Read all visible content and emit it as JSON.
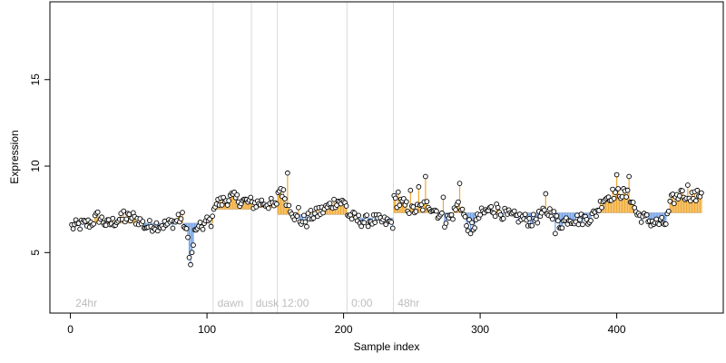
{
  "chart_data": {
    "type": "scatter",
    "xlabel": "Sample index",
    "ylabel": "Expression",
    "xlim": [
      -15,
      478
    ],
    "ylim": [
      1.5,
      19.5
    ],
    "x_ticks": [
      0,
      100,
      200,
      300,
      400
    ],
    "y_ticks": [
      5,
      10,
      15
    ],
    "grid": false,
    "legend": "none",
    "colors": {
      "above_segment": "#f0a830",
      "below_segment": "#6f9fe6",
      "point_fill": "#ffffff",
      "point_stroke": "#000000",
      "section_line": "#d9d9d9",
      "section_text": "#bdbdbd"
    },
    "sections": [
      {
        "label": "24hr",
        "start": 1,
        "end": 104,
        "baseline": 6.7
      },
      {
        "label": "dawn",
        "start": 105,
        "end": 132,
        "baseline": 7.5
      },
      {
        "label": "dusk",
        "start": 133,
        "end": 151,
        "baseline": 7.6
      },
      {
        "label": "12:00",
        "start": 152,
        "end": 202,
        "baseline": 7.2
      },
      {
        "label": "0:00",
        "start": 203,
        "end": 236,
        "baseline": 7.0
      },
      {
        "label": "48hr",
        "start": 237,
        "end": 462,
        "baseline": 7.3
      }
    ],
    "section_boundaries": [
      104.5,
      132.5,
      151.5,
      202.5,
      236.5
    ],
    "value_anchors": [
      [
        1,
        6.5
      ],
      [
        8,
        6.6
      ],
      [
        15,
        6.7
      ],
      [
        20,
        7.1
      ],
      [
        27,
        6.6
      ],
      [
        35,
        6.9
      ],
      [
        42,
        7.0
      ],
      [
        50,
        6.9
      ],
      [
        55,
        6.5
      ],
      [
        62,
        6.6
      ],
      [
        70,
        6.6
      ],
      [
        77,
        6.8
      ],
      [
        82,
        7.0
      ],
      [
        86,
        5.8
      ],
      [
        88,
        4.3
      ],
      [
        91,
        6.1
      ],
      [
        95,
        6.4
      ],
      [
        100,
        6.8
      ],
      [
        104,
        6.8
      ],
      [
        105,
        7.8
      ],
      [
        110,
        7.9
      ],
      [
        118,
        8.2
      ],
      [
        125,
        8.0
      ],
      [
        132,
        7.9
      ],
      [
        133,
        7.8
      ],
      [
        140,
        7.9
      ],
      [
        147,
        7.8
      ],
      [
        151,
        7.6
      ],
      [
        152,
        8.6
      ],
      [
        155,
        8.5
      ],
      [
        160,
        7.8
      ],
      [
        165,
        7.0
      ],
      [
        170,
        6.8
      ],
      [
        176,
        7.1
      ],
      [
        182,
        7.3
      ],
      [
        188,
        7.6
      ],
      [
        195,
        8.0
      ],
      [
        202,
        7.8
      ],
      [
        203,
        7.2
      ],
      [
        210,
        6.9
      ],
      [
        215,
        6.8
      ],
      [
        222,
        6.9
      ],
      [
        228,
        6.8
      ],
      [
        236,
        6.7
      ],
      [
        237,
        8.0
      ],
      [
        244,
        7.8
      ],
      [
        250,
        7.4
      ],
      [
        256,
        7.6
      ],
      [
        262,
        7.8
      ],
      [
        268,
        7.4
      ],
      [
        274,
        6.8
      ],
      [
        280,
        7.2
      ],
      [
        285,
        8.0
      ],
      [
        290,
        6.6
      ],
      [
        295,
        6.5
      ],
      [
        300,
        7.2
      ],
      [
        308,
        7.5
      ],
      [
        315,
        7.3
      ],
      [
        322,
        7.1
      ],
      [
        330,
        7.0
      ],
      [
        338,
        6.8
      ],
      [
        345,
        7.2
      ],
      [
        352,
        7.4
      ],
      [
        358,
        6.6
      ],
      [
        365,
        7.0
      ],
      [
        372,
        6.9
      ],
      [
        380,
        7.0
      ],
      [
        385,
        7.3
      ],
      [
        390,
        8.1
      ],
      [
        395,
        8.3
      ],
      [
        400,
        8.5
      ],
      [
        405,
        8.4
      ],
      [
        410,
        8.2
      ],
      [
        415,
        7.2
      ],
      [
        420,
        7.0
      ],
      [
        425,
        6.8
      ],
      [
        430,
        6.7
      ],
      [
        436,
        6.7
      ],
      [
        440,
        8.0
      ],
      [
        446,
        8.3
      ],
      [
        452,
        8.4
      ],
      [
        458,
        8.2
      ],
      [
        462,
        8.5
      ]
    ],
    "highlight_points": [
      [
        39,
        7.4
      ],
      [
        46,
        7.3
      ],
      [
        79,
        7.2
      ],
      [
        88,
        4.3
      ],
      [
        93,
        6.4
      ],
      [
        154,
        8.7
      ],
      [
        159,
        9.6
      ],
      [
        167,
        7.6
      ],
      [
        173,
        6.5
      ],
      [
        182,
        7.6
      ],
      [
        240,
        8.5
      ],
      [
        249,
        8.6
      ],
      [
        255,
        8.8
      ],
      [
        260,
        9.4
      ],
      [
        273,
        8.2
      ],
      [
        285,
        9.0
      ],
      [
        293,
        6.1
      ],
      [
        312,
        7.8
      ],
      [
        348,
        8.4
      ],
      [
        355,
        6.1
      ],
      [
        400,
        9.5
      ],
      [
        409,
        9.4
      ],
      [
        447,
        8.6
      ],
      [
        452,
        8.9
      ]
    ],
    "jitter_amplitude": 0.35
  }
}
